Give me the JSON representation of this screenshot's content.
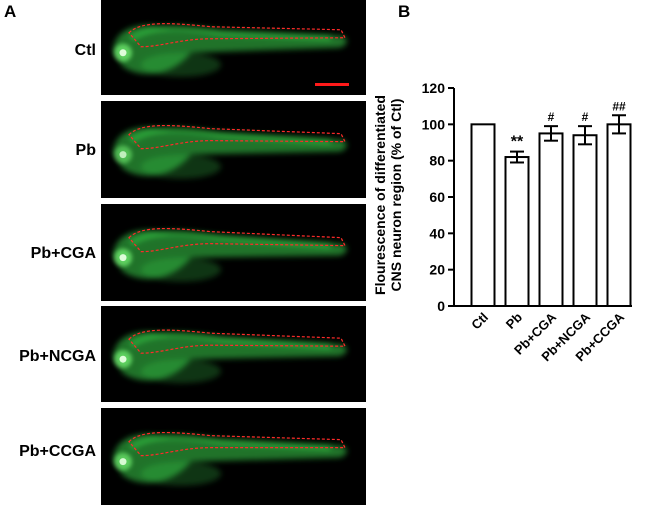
{
  "panel_a_letter": "A",
  "panel_b_letter": "B",
  "groups": [
    {
      "label": "Ctl",
      "fish": {
        "head_bright": 0.95,
        "tilt": -1
      }
    },
    {
      "label": "Pb",
      "fish": {
        "head_bright": 0.75,
        "tilt": 1
      }
    },
    {
      "label": "Pb+CGA",
      "fish": {
        "head_bright": 0.95,
        "tilt": 2
      }
    },
    {
      "label": "Pb+NCGA",
      "fish": {
        "head_bright": 0.95,
        "tilt": 1
      }
    },
    {
      "label": "Pb+CCGA",
      "fish": {
        "head_bright": 0.9,
        "tilt": 0
      }
    }
  ],
  "colors": {
    "fish_green": "#38d24a",
    "dash_red": "#ff2a2a",
    "scale_bar": "#ff1a1a",
    "bar_fill": "#ffffff",
    "axis": "#000000"
  },
  "chart_data": {
    "type": "bar",
    "categories": [
      "Ctl",
      "Pb",
      "Pb+CGA",
      "Pb+NCGA",
      "Pb+CCGA"
    ],
    "values": [
      100,
      82,
      95,
      94,
      100
    ],
    "errors": [
      0,
      3,
      4,
      5,
      5
    ],
    "annotations": [
      "",
      "**",
      "#",
      "#",
      "##"
    ],
    "ylabel_line1": "Flourescence of differentiated",
    "ylabel_line2": "CNS neuron region (% of Ctl)",
    "ylim": [
      0,
      120
    ],
    "yticks": [
      0,
      20,
      40,
      60,
      80,
      100,
      120
    ],
    "grid": false
  }
}
